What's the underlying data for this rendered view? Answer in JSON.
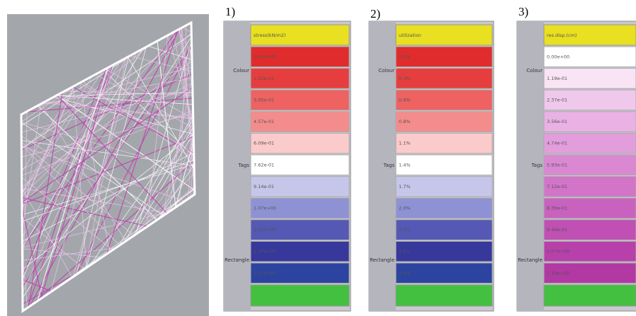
{
  "panels": [
    {
      "number": "1)",
      "header": "stress(kN/m2)",
      "side_labels": [
        "Colour",
        "Tags",
        "Rectangle"
      ],
      "rows": [
        {
          "label": "0.00e+00",
          "color": "#e02c2c"
        },
        {
          "label": "1.52e-01",
          "color": "#e63e3e"
        },
        {
          "label": "3.05e-01",
          "color": "#ee6262"
        },
        {
          "label": "4.57e-01",
          "color": "#f48c8c"
        },
        {
          "label": "6.09e-01",
          "color": "#fbcaca"
        },
        {
          "label": "7.62e-01",
          "color": "#ffffff"
        },
        {
          "label": "9.14e-01",
          "color": "#c6c6ea"
        },
        {
          "label": "1.07e+00",
          "color": "#8e92d4"
        },
        {
          "label": "1.22e+00",
          "color": "#5558b4"
        },
        {
          "label": "1.37e+00",
          "color": "#36389c"
        },
        {
          "label": "1.52e+00",
          "color": "#2c44a0"
        }
      ]
    },
    {
      "number": "2)",
      "header": "utilization",
      "side_labels": [
        "Colour",
        "Tags",
        "Rectangle"
      ],
      "rows": [
        {
          "label": "0.0%",
          "color": "#e02c2c"
        },
        {
          "label": "0.3%",
          "color": "#e63e3e"
        },
        {
          "label": "0.6%",
          "color": "#ee6262"
        },
        {
          "label": "0.8%",
          "color": "#f48c8c"
        },
        {
          "label": "1.1%",
          "color": "#fbcaca"
        },
        {
          "label": "1.4%",
          "color": "#ffffff"
        },
        {
          "label": "1.7%",
          "color": "#c6c6ea"
        },
        {
          "label": "2.0%",
          "color": "#8e92d4"
        },
        {
          "label": "2.3%",
          "color": "#5558b4"
        },
        {
          "label": "2.5%",
          "color": "#36389c"
        },
        {
          "label": "2.8%",
          "color": "#2c44a0"
        }
      ]
    },
    {
      "number": "3)",
      "header": "res.disp.(cm)",
      "side_labels": [
        "Colour",
        "Tags",
        "Rectangle"
      ],
      "rows": [
        {
          "label": "0.00e+00",
          "color": "#ffffff"
        },
        {
          "label": "1.19e-01",
          "color": "#f8e4f4"
        },
        {
          "label": "2.37e-01",
          "color": "#f0c8ec"
        },
        {
          "label": "3.56e-01",
          "color": "#eab2e4"
        },
        {
          "label": "4.74e-01",
          "color": "#e29edc"
        },
        {
          "label": "5.93e-01",
          "color": "#da88d2"
        },
        {
          "label": "7.12e-01",
          "color": "#d274c8"
        },
        {
          "label": "8.30e-01",
          "color": "#c862be"
        },
        {
          "label": "9.49e-01",
          "color": "#c050b4"
        },
        {
          "label": "1.07e+00",
          "color": "#b840aa"
        },
        {
          "label": "1.19e+00",
          "color": "#b238a4"
        }
      ]
    }
  ]
}
